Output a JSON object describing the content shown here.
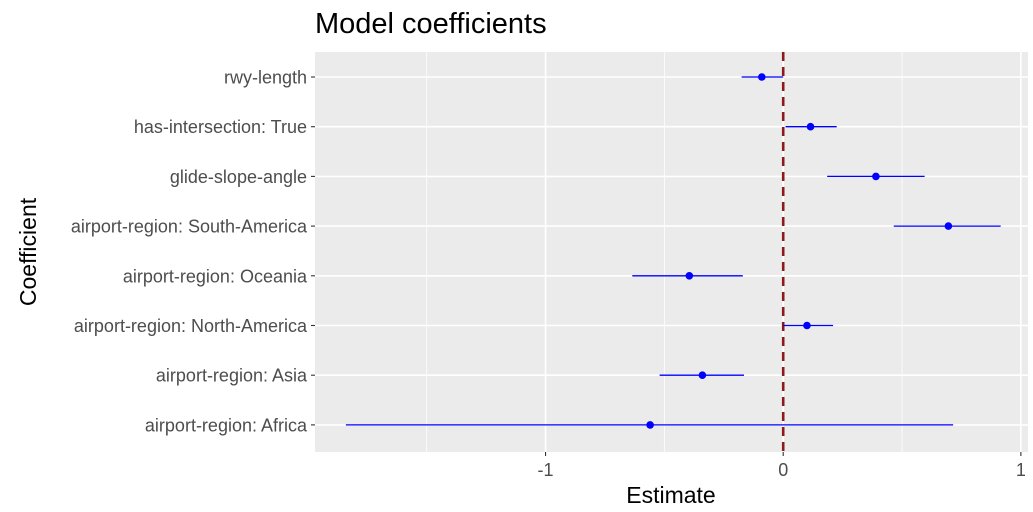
{
  "chart_data": {
    "type": "scatter",
    "title": "Model coefficients",
    "xlabel": "Estimate",
    "ylabel": "Coefficient",
    "xlim": [
      -1.97,
      1.03
    ],
    "x_ticks": [
      -1,
      0,
      1
    ],
    "x_tick_labels": [
      "-1",
      "0",
      "1"
    ],
    "grid": true,
    "reference_line": {
      "x": 0,
      "style": "dashed",
      "color": "#8b1a1a"
    },
    "point_color": "#0000ff",
    "panel_background": "#ebebeb",
    "grid_color": "#ffffff",
    "series": [
      {
        "points": [
          {
            "label": "rwy-length",
            "estimate": -0.09,
            "lower": -0.175,
            "upper": 0.0
          },
          {
            "label": "has-intersection: True",
            "estimate": 0.115,
            "lower": 0.01,
            "upper": 0.225
          },
          {
            "label": "glide-slope-angle",
            "estimate": 0.39,
            "lower": 0.185,
            "upper": 0.595
          },
          {
            "label": "airport-region: South-America",
            "estimate": 0.695,
            "lower": 0.465,
            "upper": 0.915
          },
          {
            "label": "airport-region: Oceania",
            "estimate": -0.395,
            "lower": -0.635,
            "upper": -0.17
          },
          {
            "label": "airport-region: North-America",
            "estimate": 0.1,
            "lower": 0.0,
            "upper": 0.21
          },
          {
            "label": "airport-region: Asia",
            "estimate": -0.34,
            "lower": -0.52,
            "upper": -0.165
          },
          {
            "label": "airport-region: Africa",
            "estimate": -0.56,
            "lower": -1.84,
            "upper": 0.715
          }
        ]
      }
    ]
  }
}
